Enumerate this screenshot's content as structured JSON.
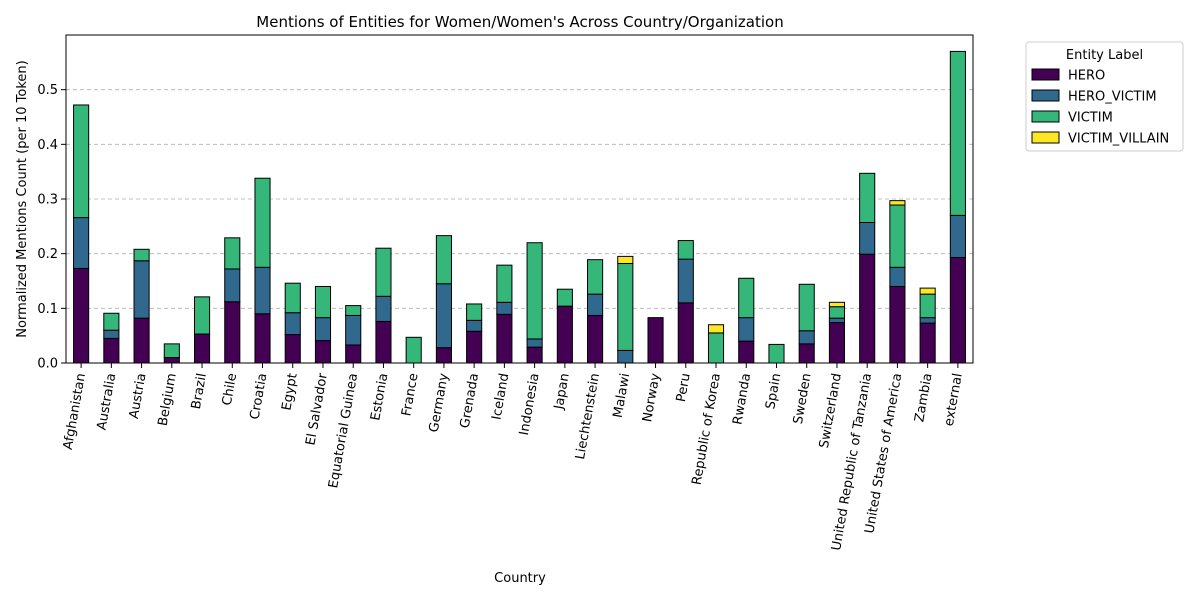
{
  "chart_data": {
    "type": "bar",
    "stacked": true,
    "title": "Mentions of Entities for Women/Women's Across Country/Organization",
    "xlabel": "Country",
    "ylabel": "Normalized Mentions Count (per 10 Token)",
    "ylim": [
      0,
      0.6
    ],
    "yticks": [
      0.0,
      0.1,
      0.2,
      0.3,
      0.4,
      0.5
    ],
    "ytick_labels": [
      "0.0",
      "0.1",
      "0.2",
      "0.3",
      "0.4",
      "0.5"
    ],
    "grid": "y-dashed",
    "legend": {
      "title": "Entity Label",
      "placement": "outside-top-right"
    },
    "categories": [
      "Afghanistan",
      "Australia",
      "Austria",
      "Belgium",
      "Brazil",
      "Chile",
      "Croatia",
      "Egypt",
      "El Salvador",
      "Equatorial Guinea",
      "Estonia",
      "France",
      "Germany",
      "Grenada",
      "Iceland",
      "Indonesia",
      "Japan",
      "Liechtenstein",
      "Malawi",
      "Norway",
      "Peru",
      "Republic of Korea",
      "Rwanda",
      "Spain",
      "Sweden",
      "Switzerland",
      "United Republic of Tanzania",
      "United States of America",
      "Zambia",
      "external"
    ],
    "series": [
      {
        "name": "HERO",
        "color": "#440154",
        "values": [
          0.173,
          0.045,
          0.082,
          0.01,
          0.053,
          0.112,
          0.09,
          0.052,
          0.041,
          0.033,
          0.076,
          0.0,
          0.028,
          0.058,
          0.089,
          0.029,
          0.104,
          0.087,
          0.0,
          0.083,
          0.11,
          0.0,
          0.04,
          0.0,
          0.035,
          0.074,
          0.199,
          0.14,
          0.073,
          0.193
        ]
      },
      {
        "name": "HERO_VICTIM",
        "color": "#31688e",
        "values": [
          0.093,
          0.015,
          0.105,
          0.0,
          0.0,
          0.06,
          0.085,
          0.04,
          0.042,
          0.054,
          0.046,
          0.0,
          0.117,
          0.02,
          0.022,
          0.015,
          0.0,
          0.039,
          0.023,
          0.0,
          0.08,
          0.0,
          0.043,
          0.0,
          0.024,
          0.008,
          0.058,
          0.035,
          0.01,
          0.077
        ]
      },
      {
        "name": "VICTIM",
        "color": "#35b779",
        "values": [
          0.206,
          0.031,
          0.021,
          0.025,
          0.068,
          0.057,
          0.163,
          0.054,
          0.057,
          0.018,
          0.088,
          0.047,
          0.088,
          0.03,
          0.068,
          0.176,
          0.031,
          0.063,
          0.159,
          0.0,
          0.034,
          0.055,
          0.072,
          0.034,
          0.085,
          0.021,
          0.09,
          0.114,
          0.043,
          0.3
        ]
      },
      {
        "name": "VICTIM_VILLAIN",
        "color": "#fde725",
        "values": [
          0.0,
          0.0,
          0.0,
          0.0,
          0.0,
          0.0,
          0.0,
          0.0,
          0.0,
          0.0,
          0.0,
          0.0,
          0.0,
          0.0,
          0.0,
          0.0,
          0.0,
          0.0,
          0.013,
          0.0,
          0.0,
          0.015,
          0.0,
          0.0,
          0.0,
          0.008,
          0.0,
          0.008,
          0.011,
          0.0
        ]
      }
    ]
  }
}
